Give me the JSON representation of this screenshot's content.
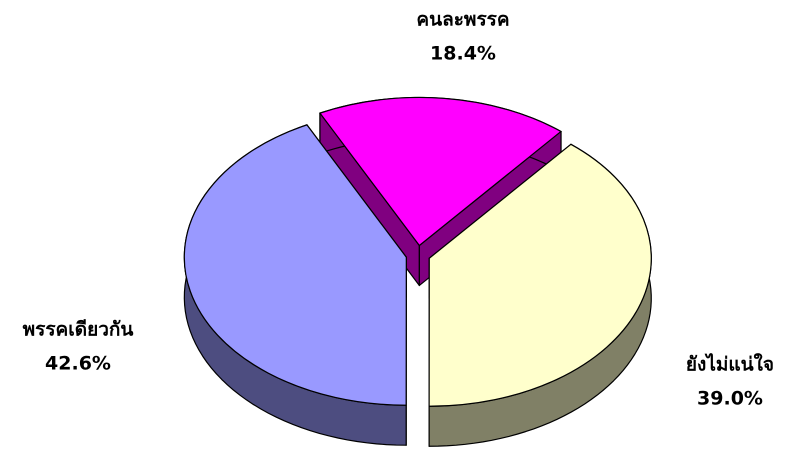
{
  "chart_data": {
    "type": "pie",
    "categories": [
      "คนละพรรค",
      "ยังไม่แน่ใจ",
      "พรรคเดียวกัน"
    ],
    "values": [
      18.4,
      39.0,
      42.6
    ],
    "value_labels": [
      "18.4%",
      "39.0%",
      "42.6%"
    ],
    "colors": [
      "#ff00ff",
      "#ffffcc",
      "#9999ff"
    ],
    "side_colors": [
      "#800080",
      "#808066",
      "#4d4d80"
    ],
    "start_angle": 333.4,
    "exploded": true
  }
}
